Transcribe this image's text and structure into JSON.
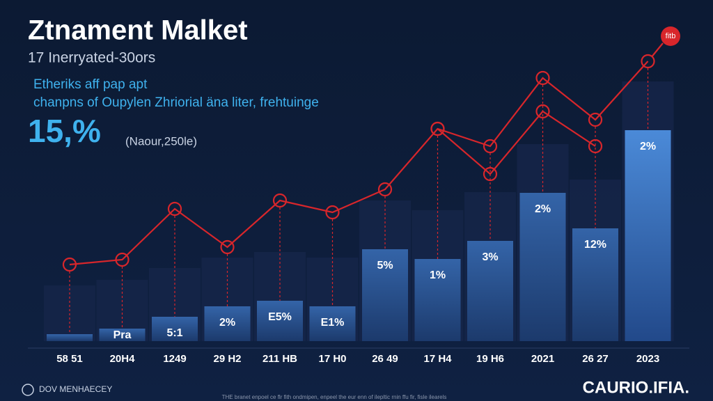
{
  "chart_data": {
    "type": "bar",
    "title": "Ztnament Malket",
    "subtitle": "17 Inerryated-30ors",
    "annotation_line1": "Etheriks aff pap apt",
    "annotation_line2": "chanpns of Oupylen Zhriorial äna liter, frehtuinge",
    "highlight": "15,%",
    "highlight_note": "(Naour,250le)",
    "badge": "fitb",
    "categories": [
      "58 51",
      "20H4",
      "1249",
      "29 H2",
      "211 HB",
      "17 H0",
      "26 49",
      "17 H4",
      "19 H6",
      "2021",
      "26 27",
      "2023"
    ],
    "values": [
      10,
      18,
      35,
      50,
      58,
      50,
      132,
      118,
      144,
      213,
      162,
      303
    ],
    "bar_labels": [
      null,
      "Pra",
      "5:1",
      "2%",
      "E5%",
      "E1%",
      "5%",
      "1%",
      "3%",
      "2%",
      "12%",
      "2%"
    ],
    "color": "#2c5592",
    "lines": [
      {
        "color": "#d8262b",
        "values": [
          110,
          117,
          190,
          135,
          202,
          185,
          218,
          305,
          280,
          378,
          318,
          402
        ]
      },
      {
        "color": "#d8262b",
        "values": [
          null,
          null,
          null,
          null,
          null,
          null,
          null,
          305,
          240,
          330,
          280,
          null
        ]
      }
    ],
    "footer_left": "DOV MENHAECEY",
    "footer_right": "CAURIO.IFIA.",
    "footnote": "THE branet enpoel ce flr fith ondmipen, enpeel the eur enn of ilepltic rnin ffu fir, fisle ilearels"
  }
}
